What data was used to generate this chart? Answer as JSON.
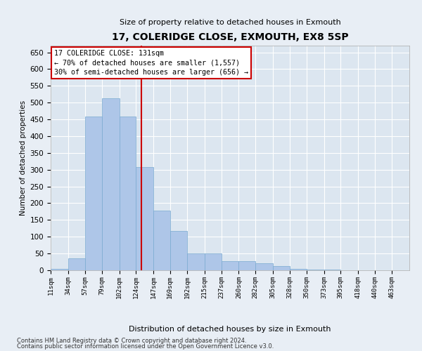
{
  "title": "17, COLERIDGE CLOSE, EXMOUTH, EX8 5SP",
  "subtitle": "Size of property relative to detached houses in Exmouth",
  "xlabel": "Distribution of detached houses by size in Exmouth",
  "ylabel": "Number of detached properties",
  "bar_color": "#aec6e8",
  "bar_edge_color": "#7aaad0",
  "background_color": "#dce6f0",
  "grid_color": "#ffffff",
  "fig_background_color": "#e8eef5",
  "vline_x": 131,
  "vline_color": "#cc0000",
  "annotation_text": "17 COLERIDGE CLOSE: 131sqm\n← 70% of detached houses are smaller (1,557)\n30% of semi-detached houses are larger (656) →",
  "annotation_box_color": "#cc0000",
  "categories": [
    "11sqm",
    "34sqm",
    "57sqm",
    "79sqm",
    "102sqm",
    "124sqm",
    "147sqm",
    "169sqm",
    "192sqm",
    "215sqm",
    "237sqm",
    "260sqm",
    "282sqm",
    "305sqm",
    "328sqm",
    "350sqm",
    "373sqm",
    "395sqm",
    "418sqm",
    "440sqm",
    "463sqm"
  ],
  "bin_edges": [
    11,
    34,
    57,
    79,
    102,
    124,
    147,
    169,
    192,
    215,
    237,
    260,
    282,
    305,
    328,
    350,
    373,
    395,
    418,
    440,
    463,
    486
  ],
  "values": [
    5,
    36,
    458,
    513,
    458,
    307,
    179,
    117,
    50,
    50,
    28,
    28,
    20,
    13,
    5,
    3,
    2,
    1,
    1,
    0,
    1
  ],
  "ylim": [
    0,
    670
  ],
  "yticks": [
    0,
    50,
    100,
    150,
    200,
    250,
    300,
    350,
    400,
    450,
    500,
    550,
    600,
    650
  ],
  "footnote1": "Contains HM Land Registry data © Crown copyright and database right 2024.",
  "footnote2": "Contains public sector information licensed under the Open Government Licence v3.0."
}
